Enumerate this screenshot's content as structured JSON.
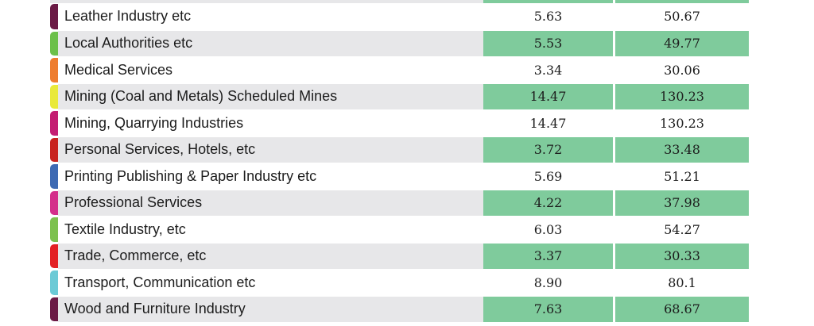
{
  "table": {
    "rows": [
      {
        "name": "Leather Industry etc",
        "v1": "5.63",
        "v2": "50.67",
        "color": "#6b1a45"
      },
      {
        "name": "Local Authorities etc",
        "v1": "5.53",
        "v2": "49.77",
        "color": "#6cc04a"
      },
      {
        "name": "Medical Services",
        "v1": "3.34",
        "v2": "30.06",
        "color": "#ee7d2f"
      },
      {
        "name": "Mining (Coal and Metals) Scheduled Mines",
        "v1": "14.47",
        "v2": "130.23",
        "color": "#e9e93a"
      },
      {
        "name": "Mining, Quarrying Industries",
        "v1": "14.47",
        "v2": "130.23",
        "color": "#c41e72"
      },
      {
        "name": "Personal Services, Hotels, etc",
        "v1": "3.72",
        "v2": "33.48",
        "color": "#c8231f"
      },
      {
        "name": "Printing Publishing & Paper Industry etc",
        "v1": "5.69",
        "v2": "51.21",
        "color": "#3e6ab3"
      },
      {
        "name": "Professional Services",
        "v1": "4.22",
        "v2": "37.98",
        "color": "#d42f8b"
      },
      {
        "name": "Textile Industry, etc",
        "v1": "6.03",
        "v2": "54.27",
        "color": "#7dc14f"
      },
      {
        "name": "Trade, Commerce, etc",
        "v1": "3.37",
        "v2": "30.33",
        "color": "#e32124"
      },
      {
        "name": "Transport, Communication etc",
        "v1": "8.90",
        "v2": "80.1",
        "color": "#6ccad6"
      },
      {
        "name": "Wood and Furniture Industry",
        "v1": "7.63",
        "v2": "68.67",
        "color": "#6b1a45"
      }
    ]
  }
}
